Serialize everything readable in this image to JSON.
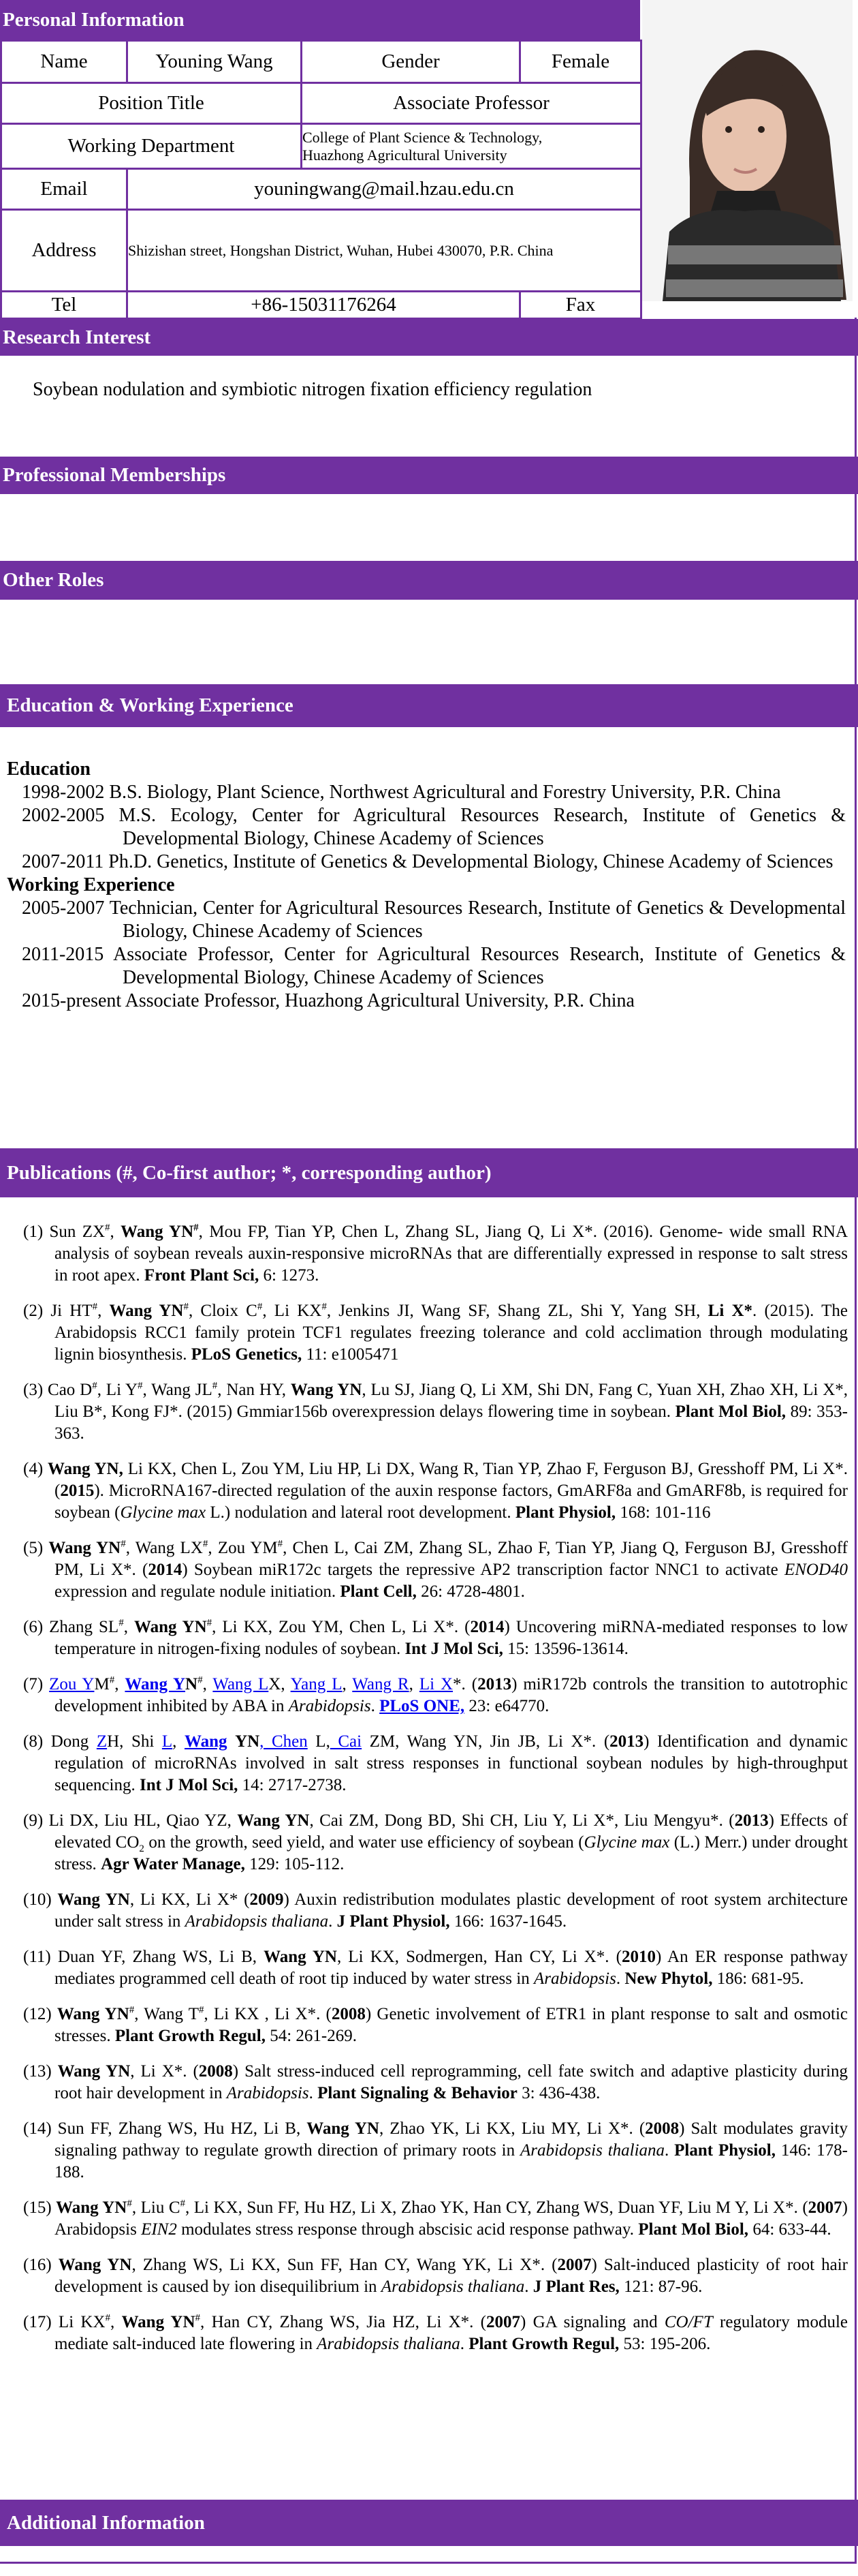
{
  "colors": {
    "accent": "#7030a0",
    "link": "#0000ee"
  },
  "personal": {
    "title": "Personal Information",
    "name_label": "Name",
    "name": "Youning Wang",
    "gender_label": "Gender",
    "gender": "Female",
    "position_label": "Position Title",
    "position": "Associate Professor",
    "dept_label": "Working Department",
    "dept_line1": "College of Plant Science & Technology,",
    "dept_line2": "Huazhong Agricultural University",
    "email_label": "Email",
    "email": "youningwang@mail.hzau.edu.cn",
    "address_label": "Address",
    "address": "Shizishan street, Hongshan District, Wuhan, Hubei 430070, P.R. China",
    "tel_label": "Tel",
    "tel": "+86-15031176264",
    "fax_label": "Fax",
    "photo": "portrait-photo"
  },
  "research": {
    "title": "Research Interest",
    "text": "Soybean nodulation and symbiotic nitrogen fixation efficiency regulation"
  },
  "memberships": {
    "title": "Professional Memberships"
  },
  "roles": {
    "title": "Other Roles"
  },
  "education": {
    "title": "Education & Working Experience",
    "edu_heading": "Education",
    "edu_items": [
      "1998-2002 B.S. Biology, Plant Science, Northwest Agricultural and Forestry University, P.R. China",
      "2002-2005 M.S. Ecology, Center for Agricultural Resources Research, Institute of Genetics & Developmental Biology, Chinese Academy of Sciences",
      "2007-2011 Ph.D. Genetics, Institute of Genetics & Developmental Biology, Chinese Academy of Sciences"
    ],
    "work_heading": "Working Experience",
    "work_items": [
      "2005-2007 Technician, Center for Agricultural Resources Research, Institute of Genetics & Developmental Biology, Chinese Academy of Sciences",
      "2011-2015 Associate Professor, Center for Agricultural Resources Research, Institute of Genetics & Developmental Biology, Chinese Academy of Sciences",
      "2015-present Associate Professor, Huazhong Agricultural University, P.R. China"
    ]
  },
  "publications": {
    "title": "Publications (#, Co-first author; *, corresponding author)",
    "items": [
      {
        "num": "(1)",
        "seg": [
          [
            "Sun ZX",
            ""
          ],
          [
            "#",
            "sup"
          ],
          [
            ", ",
            ""
          ],
          [
            "Wang YN",
            "b"
          ],
          [
            "#",
            "bsup"
          ],
          [
            ", Mou FP, Tian YP, Chen L, Zhang SL, Jiang Q, Li X*. (2016). Genome- wide small RNA analysis of soybean reveals auxin-responsive microRNAs that are differentially expressed in response to salt stress in root apex. ",
            ""
          ],
          [
            "Front Plant Sci,",
            "b"
          ],
          [
            " 6: 1273.",
            ""
          ]
        ]
      },
      {
        "num": "(2)",
        "seg": [
          [
            "Ji HT",
            ""
          ],
          [
            "#",
            "sup"
          ],
          [
            ", ",
            ""
          ],
          [
            "Wang YN",
            "b"
          ],
          [
            "#",
            "sup"
          ],
          [
            ", Cloix C",
            ""
          ],
          [
            "#",
            "sup"
          ],
          [
            ", Li KX",
            ""
          ],
          [
            "#",
            "sup"
          ],
          [
            ", Jenkins JI, Wang SF, Shang ZL, Shi Y, Yang SH, ",
            ""
          ],
          [
            "Li X*",
            "b"
          ],
          [
            ". (2015). The Arabidopsis RCC1 family protein TCF1 regulates freezing tolerance and cold acclimation through modulating lignin biosynthesis. ",
            ""
          ],
          [
            "PLoS Genetics,",
            "b"
          ],
          [
            " 11: e1005471",
            ""
          ]
        ]
      },
      {
        "num": "(3)",
        "seg": [
          [
            "Cao D",
            ""
          ],
          [
            "#",
            "sup"
          ],
          [
            ", Li Y",
            ""
          ],
          [
            "#",
            "sup"
          ],
          [
            ", Wang JL",
            ""
          ],
          [
            "#",
            "sup"
          ],
          [
            ", Nan HY, ",
            ""
          ],
          [
            "Wang YN",
            "b"
          ],
          [
            ", Lu SJ, Jiang Q, Li XM, Shi DN, Fang C, Yuan XH, Zhao XH, Li X*, Liu B*, Kong FJ*. (2015) Gmmiar156b overexpression delays flowering time in soybean. ",
            ""
          ],
          [
            "Plant Mol Biol,",
            "b"
          ],
          [
            " 89: 353-363.",
            ""
          ]
        ]
      },
      {
        "num": "(4)",
        "seg": [
          [
            "Wang YN,",
            "b"
          ],
          [
            " Li KX, Chen L, Zou YM, Liu HP, Li DX, Wang R, Tian YP, Zhao F, Ferguson BJ, Gresshoff PM, Li X*. (",
            ""
          ],
          [
            "2015",
            "b"
          ],
          [
            "). MicroRNA167-directed regulation of the auxin response factors, GmARF8a and GmARF8b, is required for soybean (",
            ""
          ],
          [
            "Glycine max",
            "i"
          ],
          [
            " L.) nodulation and lateral root development. ",
            ""
          ],
          [
            "Plant Physiol,",
            "b"
          ],
          [
            " 168: 101-116",
            ""
          ]
        ]
      },
      {
        "num": "(5)",
        "seg": [
          [
            "Wang YN",
            "b"
          ],
          [
            "#",
            "sup"
          ],
          [
            ", Wang LX",
            ""
          ],
          [
            "#",
            "sup"
          ],
          [
            ", Zou YM",
            ""
          ],
          [
            "#",
            "sup"
          ],
          [
            ", Chen L, Cai ZM, Zhang SL, Zhao F, Tian YP, Jiang Q, Ferguson BJ, Gresshoff PM, Li X*. (",
            ""
          ],
          [
            "2014",
            "b"
          ],
          [
            ") Soybean miR172c targets the repressive AP2 transcription factor NNC1 to activate ",
            ""
          ],
          [
            "ENOD40",
            "i"
          ],
          [
            " expression and regulate nodule initiation. ",
            ""
          ],
          [
            "Plant Cell,",
            "b"
          ],
          [
            " 26: 4728-4801.",
            ""
          ]
        ]
      },
      {
        "num": "(6)",
        "seg": [
          [
            "Zhang SL",
            ""
          ],
          [
            "#",
            "sup"
          ],
          [
            ", ",
            ""
          ],
          [
            "Wang YN",
            "b"
          ],
          [
            "#",
            "sup"
          ],
          [
            ", Li KX, Zou YM, Chen L, Li X*. (",
            ""
          ],
          [
            "2014",
            "b"
          ],
          [
            ") Uncovering miRNA-mediated responses to low temperature in nitrogen-fixing nodules of soybean. ",
            ""
          ],
          [
            "Int J Mol Sci,",
            "b"
          ],
          [
            " 15: 13596-13614.",
            ""
          ]
        ]
      },
      {
        "num": "(7)",
        "seg": [
          [
            "Zou Y",
            "l"
          ],
          [
            "M",
            ""
          ],
          [
            "#",
            "sup"
          ],
          [
            ", ",
            ""
          ],
          [
            "Wang Y",
            "bl"
          ],
          [
            "N",
            "b"
          ],
          [
            "#",
            "sup"
          ],
          [
            ", ",
            ""
          ],
          [
            "Wang L",
            "l"
          ],
          [
            "X, ",
            ""
          ],
          [
            "Yang L",
            "l"
          ],
          [
            ", ",
            ""
          ],
          [
            "Wang R",
            "l"
          ],
          [
            ", ",
            ""
          ],
          [
            "Li X",
            "l"
          ],
          [
            "*. (",
            ""
          ],
          [
            "2013",
            "b"
          ],
          [
            ") miR172b controls the transition to autotrophic development inhibited by ABA in ",
            ""
          ],
          [
            "Arabidopsis",
            "i"
          ],
          [
            ". ",
            ""
          ],
          [
            "PLoS ONE,",
            "bl"
          ],
          [
            " 23: e64770.",
            ""
          ]
        ]
      },
      {
        "num": "(8)",
        "seg": [
          [
            "Dong ",
            ""
          ],
          [
            "Z",
            "l"
          ],
          [
            "H, Shi ",
            ""
          ],
          [
            "L",
            "l"
          ],
          [
            ", ",
            ""
          ],
          [
            "Wang",
            "bl"
          ],
          [
            " ",
            ""
          ],
          [
            "YN",
            "b"
          ],
          [
            ", Chen",
            "l"
          ],
          [
            " L,",
            ""
          ],
          [
            " Cai",
            "l"
          ],
          [
            " ZM, Wang YN, Jin JB, Li X*. (",
            ""
          ],
          [
            "2013",
            "b"
          ],
          [
            ") Identification and dynamic regulation of microRNAs involved in salt stress responses in functional soybean nodules by high-throughput sequencing. ",
            ""
          ],
          [
            "Int J Mol Sci,",
            "b"
          ],
          [
            " 14: 2717-2738.",
            ""
          ]
        ]
      },
      {
        "num": "(9)",
        "seg": [
          [
            "Li DX, Liu HL, Qiao YZ, ",
            ""
          ],
          [
            "Wang YN",
            "b"
          ],
          [
            ", Cai ZM, Dong BD, Shi CH, Liu Y, Li X*, Liu Mengyu*. (",
            ""
          ],
          [
            "2013",
            "b"
          ],
          [
            ") Effects of elevated CO",
            ""
          ],
          [
            "2",
            "sub"
          ],
          [
            " on the growth, seed yield, and water use efficiency of soybean (",
            ""
          ],
          [
            "Glycine max",
            "i"
          ],
          [
            " (L.) Merr.) under drought stress. ",
            ""
          ],
          [
            "Agr Water Manage,",
            "b"
          ],
          [
            " 129: 105-112.",
            ""
          ]
        ]
      },
      {
        "num": "(10)",
        "seg": [
          [
            "Wang YN",
            "b"
          ],
          [
            ", Li KX, Li X* (",
            ""
          ],
          [
            "2009",
            "b"
          ],
          [
            ") Auxin redistribution modulates plastic development of root system architecture under salt stress in ",
            ""
          ],
          [
            "Arabidopsis thaliana",
            "i"
          ],
          [
            ". ",
            ""
          ],
          [
            "J Plant Physiol,",
            "b"
          ],
          [
            " 166: 1637-1645.",
            ""
          ]
        ]
      },
      {
        "num": "(11)",
        "seg": [
          [
            "Duan YF, Zhang WS, Li B, ",
            ""
          ],
          [
            "Wang YN",
            "b"
          ],
          [
            ", Li KX, Sodmergen, Han CY, Li X*. (",
            ""
          ],
          [
            "2010",
            "b"
          ],
          [
            ") An ER response pathway mediates programmed cell death of root tip induced by water stress in ",
            ""
          ],
          [
            "Arabidopsis",
            "i"
          ],
          [
            ". ",
            ""
          ],
          [
            "New Phytol,",
            "b"
          ],
          [
            " 186: 681-95.",
            ""
          ]
        ]
      },
      {
        "num": "(12)",
        "seg": [
          [
            "Wang YN",
            "b"
          ],
          [
            "#",
            "sup"
          ],
          [
            ", Wang T",
            ""
          ],
          [
            "#",
            "sup"
          ],
          [
            ", Li KX , Li X*. (",
            ""
          ],
          [
            "2008",
            "b"
          ],
          [
            ") Genetic involvement of ETR1 in plant response to salt and osmotic stresses. ",
            ""
          ],
          [
            "Plant Growth Regul,",
            "b"
          ],
          [
            " 54: 261-269.",
            ""
          ]
        ]
      },
      {
        "num": "(13)",
        "seg": [
          [
            "Wang YN",
            "b"
          ],
          [
            ", Li X*. (",
            ""
          ],
          [
            "2008",
            "b"
          ],
          [
            ") Salt stress-induced cell reprogramming, cell fate switch and adaptive plasticity during root hair development in ",
            ""
          ],
          [
            "Arabidopsis",
            "i"
          ],
          [
            ". ",
            ""
          ],
          [
            "Plant Signaling & Behavior",
            "b"
          ],
          [
            " 3: 436-438.",
            ""
          ]
        ]
      },
      {
        "num": "(14)",
        "seg": [
          [
            "Sun FF, Zhang WS, Hu HZ, Li B, ",
            ""
          ],
          [
            "Wang YN",
            "b"
          ],
          [
            ", Zhao YK, Li KX, Liu MY, Li X*. (",
            ""
          ],
          [
            "2008",
            "b"
          ],
          [
            ") Salt modulates gravity signaling pathway to regulate growth direction of primary roots in ",
            ""
          ],
          [
            "Arabidopsis thaliana",
            "i"
          ],
          [
            ". ",
            ""
          ],
          [
            "Plant Physiol,",
            "b"
          ],
          [
            " 146: 178-188.",
            ""
          ]
        ]
      },
      {
        "num": "(15)",
        "seg": [
          [
            "Wang YN",
            "b"
          ],
          [
            "#",
            "sup"
          ],
          [
            ", Liu C",
            ""
          ],
          [
            "#",
            "sup"
          ],
          [
            ", Li KX, Sun FF, Hu HZ, Li X, Zhao YK, Han CY, Zhang WS, Duan YF, Liu M Y, Li X*. (",
            ""
          ],
          [
            "2007",
            "b"
          ],
          [
            ") Arabidopsis ",
            ""
          ],
          [
            "EIN2",
            "i"
          ],
          [
            " modulates stress response through abscisic acid response pathway. ",
            ""
          ],
          [
            "Plant Mol Biol,",
            "b"
          ],
          [
            " 64: 633-44.",
            ""
          ]
        ]
      },
      {
        "num": "(16)",
        "seg": [
          [
            "Wang YN",
            "b"
          ],
          [
            ", Zhang WS, Li KX, Sun FF, Han CY, Wang YK, Li X*. (",
            ""
          ],
          [
            "2007",
            "b"
          ],
          [
            ") Salt-induced plasticity of root hair development is caused by ion disequilibrium in ",
            ""
          ],
          [
            "Arabidopsis thaliana",
            "i"
          ],
          [
            ". ",
            ""
          ],
          [
            "J Plant Res,",
            "b"
          ],
          [
            " 121: 87-96.",
            ""
          ]
        ]
      },
      {
        "num": "(17)",
        "seg": [
          [
            "Li KX",
            ""
          ],
          [
            "#",
            "sup"
          ],
          [
            ", ",
            ""
          ],
          [
            "Wang YN",
            "b"
          ],
          [
            "#",
            "sup"
          ],
          [
            ", Han CY, Zhang WS, Jia HZ, Li X*. (",
            ""
          ],
          [
            "2007",
            "b"
          ],
          [
            ") GA signaling and ",
            ""
          ],
          [
            "CO/FT",
            "i"
          ],
          [
            " regulatory module mediate salt-induced late flowering in ",
            ""
          ],
          [
            "Arabidopsis thaliana",
            "i"
          ],
          [
            ". ",
            ""
          ],
          [
            "Plant Growth Regul,",
            "b"
          ],
          [
            " 53: 195-206.",
            ""
          ]
        ]
      }
    ]
  },
  "additional": {
    "title": "Additional Information"
  }
}
